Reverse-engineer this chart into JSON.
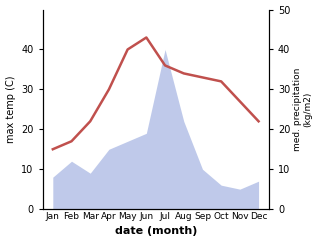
{
  "months": [
    "Jan",
    "Feb",
    "Mar",
    "Apr",
    "May",
    "Jun",
    "Jul",
    "Aug",
    "Sep",
    "Oct",
    "Nov",
    "Dec"
  ],
  "max_temp": [
    15,
    17,
    22,
    30,
    40,
    43,
    36,
    34,
    33,
    32,
    27,
    22
  ],
  "precipitation": [
    8,
    12,
    9,
    15,
    17,
    19,
    40,
    22,
    10,
    6,
    5,
    7
  ],
  "temp_color": "#c0504d",
  "precip_color_fill": "#b8c4e8",
  "ylabel_left": "max temp (C)",
  "ylabel_right": "med. precipitation\n(kg/m2)",
  "xlabel": "date (month)",
  "ylim_left": [
    0,
    50
  ],
  "ylim_right": [
    0,
    50
  ],
  "yticks_left": [
    0,
    10,
    20,
    30,
    40
  ],
  "yticks_right": [
    0,
    10,
    20,
    30,
    40,
    50
  ],
  "background_color": "#ffffff",
  "fig_width": 3.18,
  "fig_height": 2.42
}
